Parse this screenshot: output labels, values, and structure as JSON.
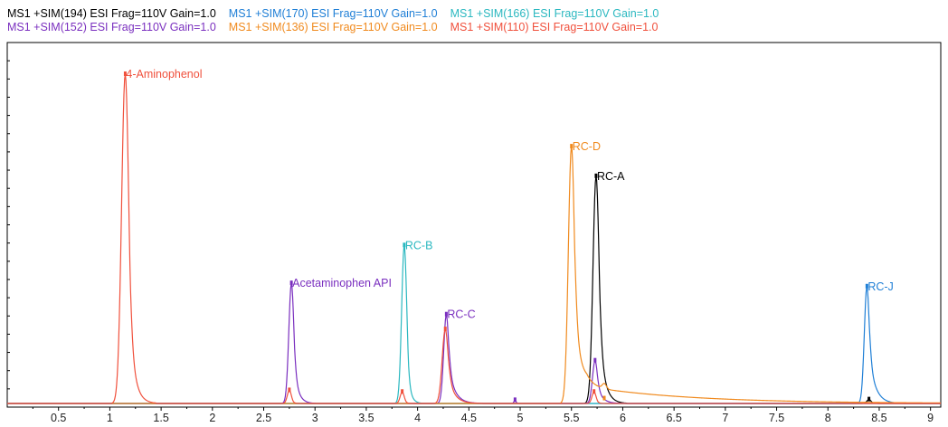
{
  "chart_data": {
    "type": "line",
    "title": "",
    "xlabel": "",
    "ylabel": "",
    "xlim": [
      0,
      9.1
    ],
    "ylim": [
      0,
      1.0
    ],
    "xticks": [
      "0.5",
      "1",
      "1.5",
      "2",
      "2.5",
      "3",
      "3.5",
      "4",
      "4.5",
      "5",
      "5.5",
      "6",
      "6.5",
      "7",
      "7.5",
      "8",
      "8.5",
      "9"
    ],
    "grid": false,
    "legend_position": "top",
    "series": [
      {
        "name": "MS1 +SIM(194) ESI Frag=110V Gain=1.0",
        "color": "#000000",
        "peaks": [
          {
            "t": 5.74,
            "h": 0.69,
            "w": 0.03,
            "tail": 0.05
          },
          {
            "t": 8.4,
            "h": 0.012,
            "w": 0.02,
            "tail": 0.02
          }
        ]
      },
      {
        "name": "MS1 +SIM(170) ESI Frag=110V Gain=1.0",
        "color": "#1f7fd6",
        "peaks": [
          {
            "t": 8.38,
            "h": 0.355,
            "w": 0.025,
            "tail": 0.06
          }
        ]
      },
      {
        "name": "MS1 +SIM(166) ESI Frag=110V Gain=1.0",
        "color": "#2bb8c0",
        "peaks": [
          {
            "t": 3.87,
            "h": 0.48,
            "w": 0.025,
            "tail": 0.03
          }
        ]
      },
      {
        "name": "MS1 +SIM(152) ESI Frag=110V Gain=1.0",
        "color": "#7a2fbf",
        "peaks": [
          {
            "t": 2.77,
            "h": 0.365,
            "w": 0.025,
            "tail": 0.04
          },
          {
            "t": 4.28,
            "h": 0.27,
            "w": 0.025,
            "tail": 0.06
          },
          {
            "t": 5.73,
            "h": 0.13,
            "w": 0.025,
            "tail": 0.05
          },
          {
            "t": 4.95,
            "h": 0.01,
            "w": 0.01,
            "tail": 0.01
          }
        ]
      },
      {
        "name": "MS1 +SIM(136) ESI Frag=110V Gain=1.0",
        "color": "#f08a1e",
        "peaks": [
          {
            "t": 5.5,
            "h": 0.78,
            "w": 0.03,
            "tail": 0.06
          },
          {
            "t": 5.82,
            "h": 0.015,
            "w": 0.02,
            "tail": 0.02
          }
        ],
        "decay": {
          "from": 5.5,
          "amp": 0.06,
          "tau": 1.0
        }
      },
      {
        "name": "MS1 +SIM(110) ESI Frag=110V Gain=1.0",
        "color": "#f0503c",
        "peaks": [
          {
            "t": 1.15,
            "h": 1.0,
            "w": 0.035,
            "tail": 0.05
          },
          {
            "t": 2.75,
            "h": 0.04,
            "w": 0.02,
            "tail": 0.02
          },
          {
            "t": 3.85,
            "h": 0.035,
            "w": 0.02,
            "tail": 0.02
          },
          {
            "t": 4.27,
            "h": 0.225,
            "w": 0.03,
            "tail": 0.06
          },
          {
            "t": 5.72,
            "h": 0.035,
            "w": 0.02,
            "tail": 0.02
          }
        ]
      }
    ],
    "annotations": [
      {
        "text": "4-Aminophenol",
        "t": 1.15,
        "h": 1.0,
        "color": "#f0503c"
      },
      {
        "text": "Acetaminophen API",
        "t": 2.77,
        "h": 0.365,
        "color": "#7a2fbf"
      },
      {
        "text": "RC-B",
        "t": 3.87,
        "h": 0.48,
        "color": "#2bb8c0"
      },
      {
        "text": "RC-C",
        "t": 4.28,
        "h": 0.27,
        "color": "#7a2fbf"
      },
      {
        "text": "RC-D",
        "t": 5.5,
        "h": 0.78,
        "color": "#f08a1e"
      },
      {
        "text": "RC-A",
        "t": 5.74,
        "h": 0.69,
        "color": "#000000"
      },
      {
        "text": "RC-J",
        "t": 8.38,
        "h": 0.355,
        "color": "#1f7fd6"
      }
    ]
  }
}
